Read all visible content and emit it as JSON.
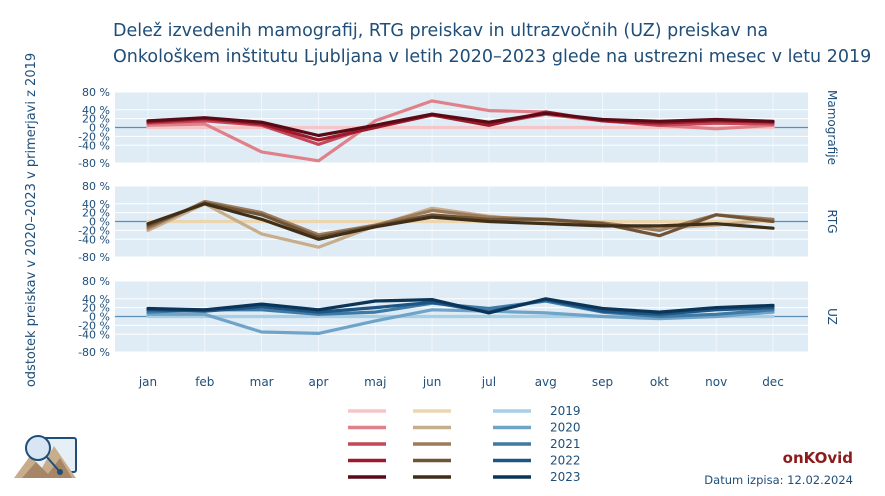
{
  "title": "Delež izvedenih mamografij, RTG preiskav in ultrazvočnih (UZ) preiskav na Onkološkem inštitutu Ljubljana v letih 2020–2023 glede na ustrezni mesec v letu 2019",
  "footer": {
    "brand": "onKOvid",
    "print_date": "Datum izpisa: 12.02.2024"
  },
  "colors": {
    "panel_bg": "#dfecf5",
    "zero_line": "#5b8db8",
    "text": "#1f4e79",
    "mamografije": [
      "#f7c5c8",
      "#e08088",
      "#c4485a",
      "#9b1b2c",
      "#5a0a16"
    ],
    "rtg": [
      "#ecd6b0",
      "#c8ad8c",
      "#9d7c5c",
      "#6f5438",
      "#3f2e18"
    ],
    "uz": [
      "#a7cfe6",
      "#6fa4c8",
      "#3f7aa6",
      "#1e5583",
      "#0b3558"
    ]
  },
  "chart_data": {
    "type": "line",
    "ylabel": "odstotek preiskav v 2020–2023 v primerjavi z 2019",
    "categories": [
      "jan",
      "feb",
      "mar",
      "apr",
      "maj",
      "jun",
      "jul",
      "avg",
      "sep",
      "okt",
      "nov",
      "dec"
    ],
    "ylim": [
      -80,
      80
    ],
    "yticks": [
      "80 %",
      "40 %",
      "20 %",
      "0 %",
      "-20 %",
      "-40 %",
      "-80 %"
    ],
    "ytick_values": [
      80,
      40,
      20,
      0,
      -20,
      -40,
      -80
    ],
    "grid": true,
    "legend": {
      "years": [
        "2019",
        "2020",
        "2021",
        "2022",
        "2023"
      ],
      "placement": "bottom"
    },
    "panels": [
      {
        "name": "Mamografije",
        "series": [
          {
            "name": "2019",
            "values": [
              0,
              0,
              0,
              0,
              0,
              0,
              0,
              0,
              0,
              0,
              0,
              0
            ]
          },
          {
            "name": "2020",
            "values": [
              5,
              8,
              -55,
              -75,
              15,
              60,
              38,
              35,
              15,
              5,
              -3,
              5
            ]
          },
          {
            "name": "2021",
            "values": [
              10,
              15,
              5,
              -38,
              5,
              30,
              8,
              30,
              15,
              5,
              10,
              8
            ]
          },
          {
            "name": "2022",
            "values": [
              12,
              20,
              8,
              -28,
              0,
              28,
              5,
              35,
              15,
              10,
              15,
              12
            ]
          },
          {
            "name": "2023",
            "values": [
              15,
              22,
              12,
              -18,
              5,
              30,
              12,
              32,
              18,
              14,
              18,
              14
            ]
          }
        ]
      },
      {
        "name": "RTG",
        "series": [
          {
            "name": "2019",
            "values": [
              0,
              0,
              0,
              0,
              0,
              0,
              0,
              0,
              0,
              0,
              0,
              0
            ]
          },
          {
            "name": "2020",
            "values": [
              -20,
              40,
              -28,
              -58,
              -10,
              30,
              12,
              0,
              -5,
              -15,
              -8,
              5
            ]
          },
          {
            "name": "2021",
            "values": [
              -15,
              45,
              20,
              -30,
              -8,
              25,
              10,
              5,
              -3,
              -20,
              15,
              5
            ]
          },
          {
            "name": "2022",
            "values": [
              -10,
              42,
              15,
              -35,
              -10,
              15,
              5,
              5,
              -5,
              -32,
              15,
              0
            ]
          },
          {
            "name": "2023",
            "values": [
              -5,
              40,
              5,
              -40,
              -12,
              10,
              0,
              -5,
              -10,
              -10,
              -5,
              -15
            ]
          }
        ]
      },
      {
        "name": "UZ",
        "series": [
          {
            "name": "2019",
            "values": [
              0,
              0,
              0,
              0,
              0,
              0,
              0,
              0,
              0,
              0,
              0,
              0
            ]
          },
          {
            "name": "2020",
            "values": [
              5,
              5,
              -35,
              -38,
              -10,
              15,
              12,
              8,
              0,
              -5,
              0,
              10
            ]
          },
          {
            "name": "2021",
            "values": [
              10,
              15,
              15,
              5,
              10,
              30,
              18,
              35,
              10,
              0,
              5,
              15
            ]
          },
          {
            "name": "2022",
            "values": [
              15,
              12,
              22,
              10,
              20,
              32,
              10,
              38,
              12,
              5,
              15,
              20
            ]
          },
          {
            "name": "2023",
            "values": [
              18,
              15,
              28,
              15,
              35,
              38,
              8,
              40,
              18,
              10,
              20,
              25
            ]
          }
        ]
      }
    ]
  }
}
